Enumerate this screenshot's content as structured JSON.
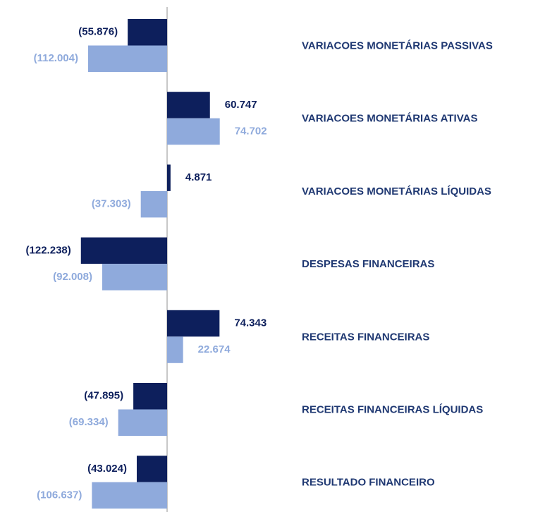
{
  "chart_data": {
    "type": "hbar",
    "categories": [
      "VARIACOES MONETÁRIAS PASSIVAS",
      "VARIACOES MONETÁRIAS ATIVAS",
      "VARIACOES MONETÁRIAS LÍQUIDAS",
      "DESPESAS FINANCEIRAS",
      "RECEITAS FINANCEIRAS",
      "RECEITAS FINANCEIRAS LÍQUIDAS",
      "RESULTADO FINANCEIRO"
    ],
    "series": [
      {
        "color": "#0d1f5c",
        "values": [
          -55876,
          60747,
          4871,
          -122238,
          74343,
          -47895,
          -43024
        ],
        "value_labels": [
          "(55.876)",
          "60.747",
          "4.871",
          "(122.238)",
          "74.343",
          "(47.895)",
          "(43.024)"
        ]
      },
      {
        "color": "#8faadc",
        "values": [
          -112004,
          74702,
          -37303,
          -92008,
          22674,
          -69334,
          -106637
        ],
        "value_labels": [
          "(112.004)",
          "74.702",
          "(37.303)",
          "(92.008)",
          "22.674",
          "(69.334)",
          "(106.637)"
        ]
      }
    ]
  }
}
